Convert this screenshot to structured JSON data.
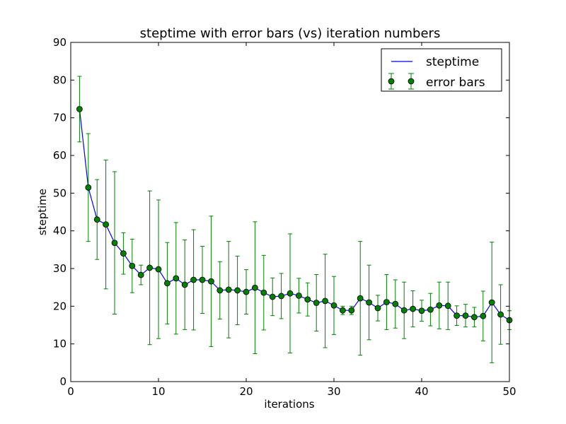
{
  "chart_data": {
    "type": "line",
    "title": "steptime with error bars (vs) iteration numbers",
    "xlabel": "iterations",
    "ylabel": "steptime",
    "xlim": [
      0,
      50
    ],
    "ylim": [
      0,
      90
    ],
    "xticks": [
      0,
      10,
      20,
      30,
      40,
      50
    ],
    "yticks": [
      0,
      10,
      20,
      30,
      40,
      50,
      60,
      70,
      80,
      90
    ],
    "grid": false,
    "legend": {
      "placement": "top-right",
      "entries": [
        "steptime",
        "error bars"
      ]
    },
    "x": [
      1,
      2,
      3,
      4,
      5,
      6,
      7,
      8,
      9,
      10,
      11,
      12,
      13,
      14,
      15,
      16,
      17,
      18,
      19,
      20,
      21,
      22,
      23,
      24,
      25,
      26,
      27,
      28,
      29,
      30,
      31,
      32,
      33,
      34,
      35,
      36,
      37,
      38,
      39,
      40,
      41,
      42,
      43,
      44,
      45,
      46,
      47,
      48,
      49,
      50
    ],
    "series": [
      {
        "name": "steptime",
        "color": "#0000ff",
        "values": [
          72.3,
          51.5,
          43.0,
          41.7,
          36.8,
          34.0,
          30.7,
          28.3,
          30.2,
          29.8,
          26.1,
          27.4,
          25.7,
          27.0,
          27.0,
          26.6,
          24.2,
          24.4,
          24.2,
          23.8,
          24.9,
          23.6,
          22.5,
          22.7,
          23.4,
          22.8,
          21.8,
          20.9,
          21.4,
          20.2,
          18.9,
          18.9,
          22.1,
          21.0,
          19.5,
          21.1,
          20.6,
          18.9,
          19.3,
          18.8,
          19.1,
          20.2,
          20.1,
          17.5,
          17.5,
          17.1,
          17.4,
          21.0,
          17.8,
          16.3
        ]
      },
      {
        "name": "error bars",
        "color": "#008000",
        "marker_color": "#008000",
        "values": [
          72.3,
          51.5,
          43.0,
          41.7,
          36.8,
          34.0,
          30.7,
          28.3,
          30.2,
          29.8,
          26.1,
          27.4,
          25.7,
          27.0,
          27.0,
          26.6,
          24.2,
          24.4,
          24.2,
          23.8,
          24.9,
          23.6,
          22.5,
          22.7,
          23.4,
          22.8,
          21.8,
          20.9,
          21.4,
          20.2,
          18.9,
          18.9,
          22.1,
          21.0,
          19.5,
          21.1,
          20.6,
          18.9,
          19.3,
          18.8,
          19.1,
          20.2,
          20.1,
          17.5,
          17.5,
          17.1,
          17.4,
          21.0,
          17.8,
          16.3
        ],
        "errors": [
          8.7,
          14.3,
          10.6,
          17.1,
          18.9,
          5.5,
          7.1,
          2.6,
          20.4,
          18.4,
          10.8,
          14.8,
          11.9,
          13.3,
          8.9,
          17.3,
          7.6,
          12.8,
          9.1,
          5.9,
          17.5,
          9.9,
          5.0,
          6.0,
          15.8,
          4.6,
          4.4,
          7.5,
          12.4,
          7.7,
          1.1,
          1.1,
          15.1,
          9.9,
          3.4,
          7.3,
          6.4,
          7.5,
          4.8,
          2.8,
          4.3,
          6.2,
          6.3,
          2.6,
          3.0,
          2.6,
          6.6,
          16.0,
          7.9,
          2.5
        ]
      }
    ]
  }
}
